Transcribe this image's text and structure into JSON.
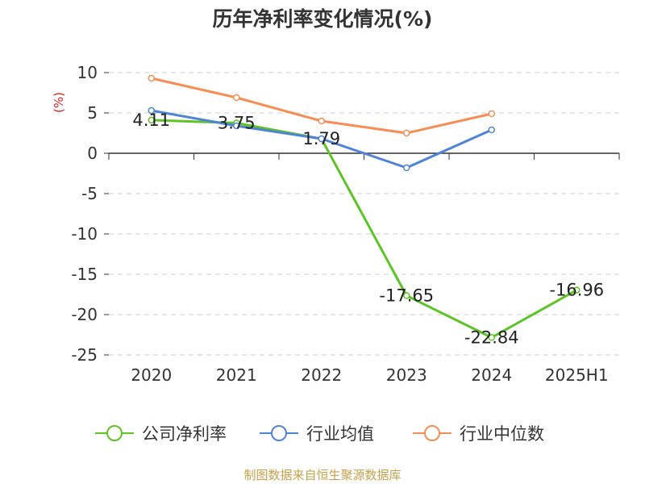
{
  "chart_data": {
    "type": "line",
    "title": "历年净利率变化情况(%)",
    "ylabel": "(%)",
    "categories": [
      "2020",
      "2021",
      "2022",
      "2023",
      "2024",
      "2025H1"
    ],
    "ylim": [
      -25,
      10
    ],
    "yticks": [
      10,
      5,
      0,
      -5,
      -10,
      -15,
      -20,
      -25
    ],
    "grid": true,
    "legend_position": "bottom",
    "series": [
      {
        "name": "公司净利率",
        "color": "#5cc424",
        "values": [
          4.11,
          3.75,
          1.79,
          -17.65,
          -22.84,
          -16.96
        ],
        "labels": [
          "4.11",
          "3.75",
          "1.79",
          "-17.65",
          "-22.84",
          "-16.96"
        ]
      },
      {
        "name": "行业均值",
        "color": "#4f83d8",
        "values": [
          5.3,
          3.4,
          1.8,
          -1.8,
          2.9,
          null
        ]
      },
      {
        "name": "行业中位数",
        "color": "#f78c55",
        "values": [
          9.3,
          6.9,
          4.0,
          2.5,
          4.9,
          null
        ]
      }
    ]
  },
  "source": "制图数据来自恒生聚源数据库"
}
